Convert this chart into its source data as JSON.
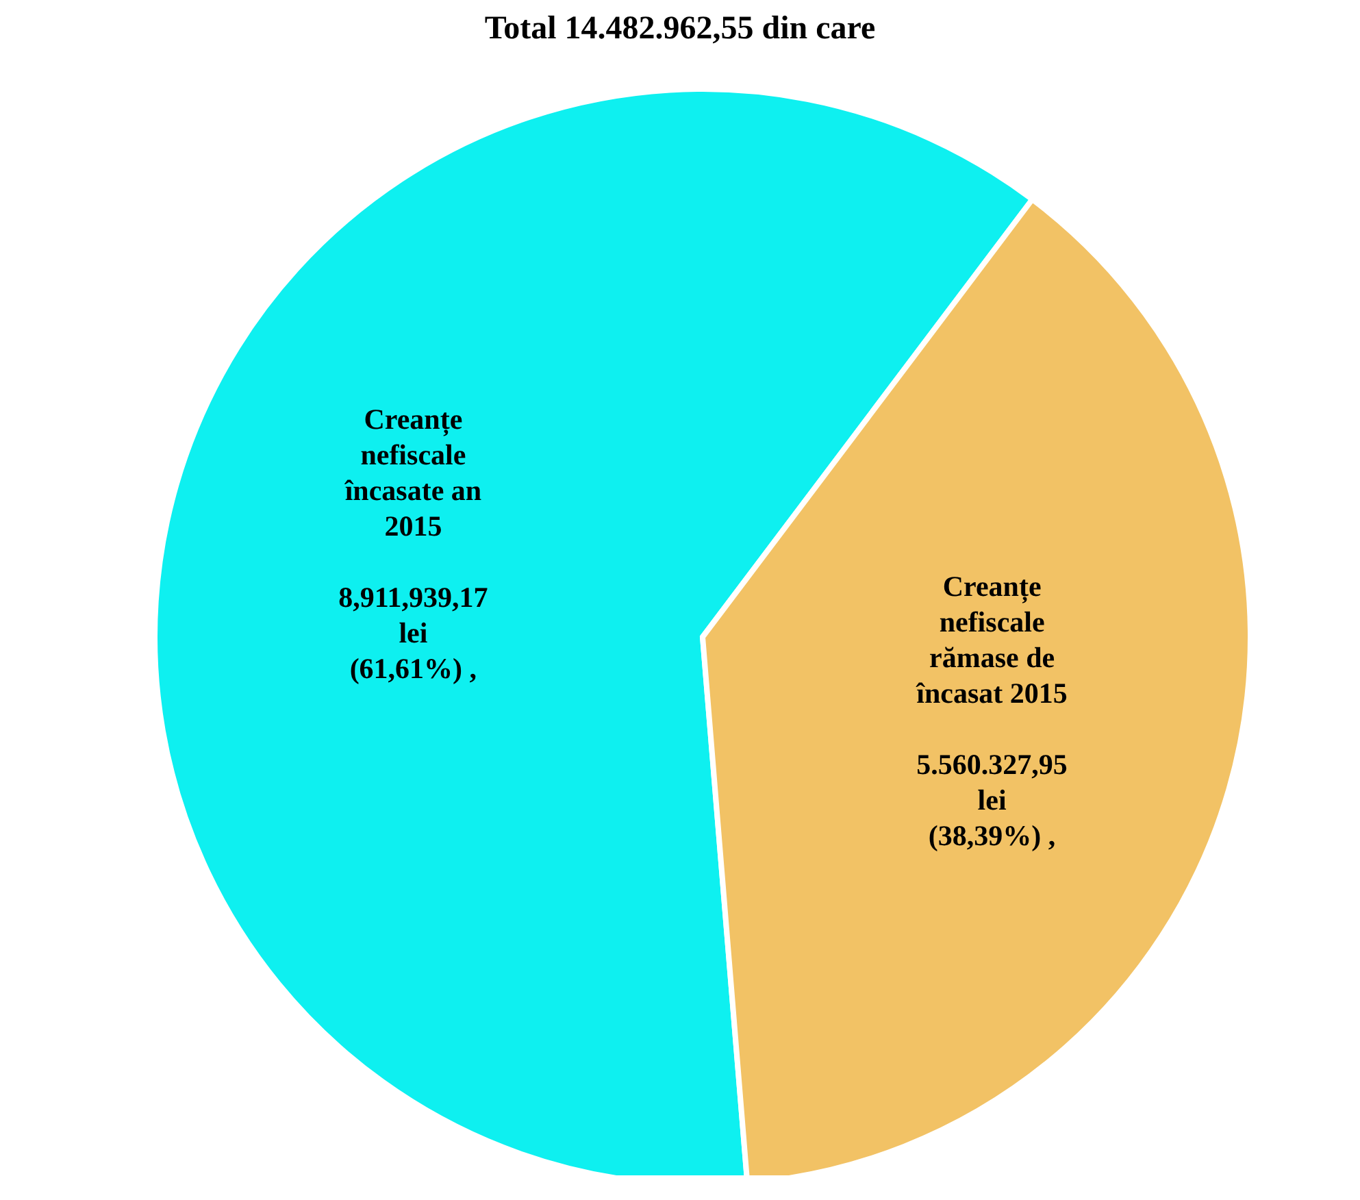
{
  "chart_data": {
    "type": "pie",
    "title": "Total 14.482.962,55 din care",
    "categories": [
      "Creanțe nefiscale încasate an 2015",
      "Creanțe nefiscale rămase de încasat 2015"
    ],
    "values": [
      8911939.17,
      5560327.95
    ],
    "colors": [
      "#0ef0f0",
      "#f2c265"
    ],
    "value_labels": [
      "8,911,939,17 lei (61,61%) ,",
      "5.560.327,95 lei (38,39%) ,"
    ],
    "legend": false
  }
}
